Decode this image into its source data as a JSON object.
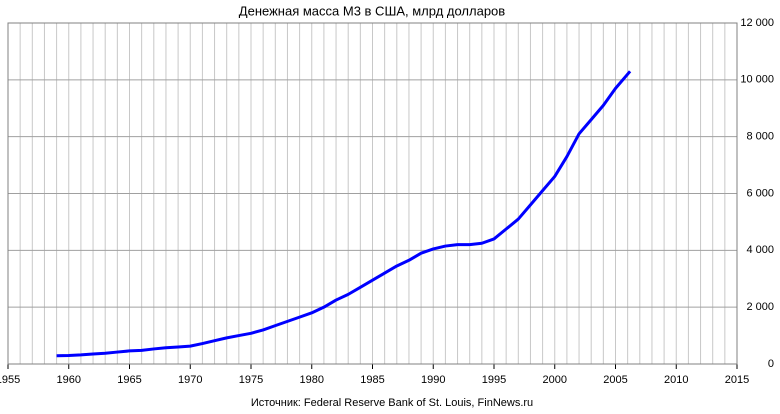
{
  "chart_data": {
    "type": "line",
    "title": "Денежная масса М3 в США, млрд долларов",
    "source": "Источник:  Federal  Reserve  Bank of St. Louis, FinNews.ru",
    "x": [
      1959,
      1960,
      1961,
      1962,
      1963,
      1964,
      1965,
      1966,
      1967,
      1968,
      1969,
      1970,
      1971,
      1972,
      1973,
      1974,
      1975,
      1976,
      1977,
      1978,
      1979,
      1980,
      1981,
      1982,
      1983,
      1984,
      1985,
      1986,
      1987,
      1988,
      1989,
      1990,
      1991,
      1992,
      1993,
      1994,
      1995,
      1996,
      1997,
      1998,
      1999,
      2000,
      2001,
      2002,
      2003,
      2004,
      2005,
      2006.2
    ],
    "series": [
      {
        "name": "M3",
        "color": "#0000ff",
        "values": [
          290,
          300,
          320,
          350,
          380,
          420,
          460,
          480,
          530,
          570,
          600,
          630,
          720,
          820,
          920,
          1000,
          1080,
          1200,
          1350,
          1500,
          1650,
          1800,
          2000,
          2250,
          2450,
          2700,
          2950,
          3200,
          3450,
          3650,
          3900,
          4050,
          4150,
          4200,
          4200,
          4250,
          4400,
          4750,
          5100,
          5600,
          6100,
          6600,
          7300,
          8100,
          8600,
          9100,
          9700,
          10300
        ]
      }
    ],
    "xlim": [
      1955,
      2015
    ],
    "xticks": [
      1955,
      1960,
      1965,
      1970,
      1975,
      1980,
      1985,
      1990,
      1995,
      2000,
      2005,
      2010,
      2015
    ],
    "ylim": [
      0,
      12000
    ],
    "yticks": [
      0,
      {
        "value": 2000,
        "label": "2 000"
      },
      {
        "value": 4000,
        "label": "4 000"
      },
      {
        "value": 6000,
        "label": "6 000"
      },
      {
        "value": 8000,
        "label": "8 000"
      },
      {
        "value": 10000,
        "label": "10 000"
      },
      {
        "value": 12000,
        "label": "12 000"
      }
    ],
    "grid": true
  }
}
